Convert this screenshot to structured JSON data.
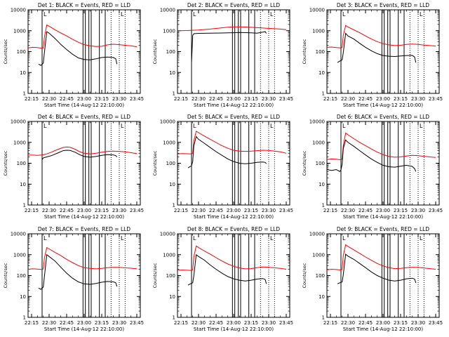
{
  "chart_data": {
    "type": "line",
    "shared": {
      "xlabel": "Start Time (14-Aug-12 22:10:00)",
      "ylabel": "Counts/sec",
      "x_ticks": [
        "22:15",
        "22:30",
        "22:45",
        "23:00",
        "23:15",
        "23:30",
        "23:45"
      ],
      "x_tick_minutes": [
        15,
        30,
        45,
        60,
        75,
        90,
        105
      ],
      "xlim_minutes": [
        12,
        108
      ],
      "y_ticks": [
        "1",
        "10",
        "100",
        "1000",
        "10000"
      ],
      "ylim": [
        1,
        10000
      ],
      "y_scale": "log",
      "series_colors": {
        "events": "#000000",
        "lld": "#ff0000"
      },
      "solid_vlines_minutes": [
        24,
        59,
        61,
        64,
        66,
        73,
        78
      ],
      "dotted_vlines_minutes": [
        83,
        90,
        95
      ],
      "mark_label": "L"
    },
    "panels": [
      {
        "title": "Det 1: BLACK = Events, RED = LLD",
        "series": [
          {
            "key": "events",
            "x": [
              21,
              23,
              25,
              26,
              28,
              30,
              35,
              40,
              45,
              50,
              55,
              60,
              65,
              70,
              75,
              80,
              85,
              87,
              88
            ],
            "y": [
              25,
              22,
              28,
              90,
              900,
              760,
              430,
              220,
              125,
              75,
              50,
              42,
              40,
              45,
              52,
              55,
              52,
              45,
              25
            ]
          },
          {
            "key": "lld",
            "x": [
              12,
              16,
              20,
              24,
              25,
              26,
              28,
              30,
              35,
              40,
              45,
              50,
              55,
              60,
              65,
              70,
              75,
              80,
              85,
              90,
              95,
              100,
              105
            ],
            "y": [
              150,
              160,
              155,
              145,
              150,
              500,
              1900,
              1650,
              1120,
              780,
              560,
              390,
              280,
              215,
              190,
              175,
              180,
              210,
              225,
              215,
              200,
              190,
              170
            ]
          }
        ]
      },
      {
        "title": "Det 2: BLACK = Events, RED = LLD",
        "series": [
          {
            "key": "events",
            "x": [
              24,
              25,
              26,
              30,
              40,
              50,
              55,
              60,
              65,
              70,
              75,
              80,
              85,
              87,
              88
            ],
            "y": [
              30,
              600,
              720,
              750,
              760,
              780,
              790,
              800,
              820,
              810,
              790,
              760,
              850,
              900,
              750
            ]
          },
          {
            "key": "lld",
            "x": [
              12,
              20,
              25,
              30,
              40,
              50,
              55,
              60,
              65,
              70,
              75,
              80,
              85,
              90,
              95,
              100,
              105
            ],
            "y": [
              1000,
              1020,
              1050,
              1080,
              1200,
              1380,
              1480,
              1520,
              1520,
              1500,
              1450,
              1400,
              1350,
              1300,
              1250,
              1200,
              1120
            ]
          }
        ]
      },
      {
        "title": "Det 3: BLACK = Events, RED = LLD",
        "series": [
          {
            "key": "events",
            "x": [
              21,
              23,
              25,
              26,
              28,
              30,
              35,
              40,
              45,
              50,
              55,
              60,
              65,
              70,
              75,
              80,
              85,
              87,
              88
            ],
            "y": [
              30,
              35,
              40,
              90,
              750,
              560,
              400,
              250,
              160,
              110,
              80,
              65,
              60,
              58,
              62,
              65,
              66,
              55,
              30
            ]
          },
          {
            "key": "lld",
            "x": [
              12,
              16,
              20,
              24,
              25,
              26,
              28,
              30,
              35,
              40,
              45,
              50,
              55,
              60,
              65,
              70,
              75,
              80,
              85,
              90,
              95,
              100,
              105
            ],
            "y": [
              160,
              165,
              155,
              150,
              160,
              600,
              1800,
              1500,
              1100,
              800,
              560,
              400,
              300,
              240,
              210,
              195,
              200,
              220,
              230,
              220,
              205,
              195,
              185
            ]
          }
        ]
      },
      {
        "title": "Det 4: BLACK = Events, RED = LLD",
        "series": [
          {
            "key": "events",
            "x": [
              24,
              25,
              28,
              32,
              38,
              42,
              45,
              48,
              52,
              56,
              60,
              65,
              70,
              75,
              80,
              85,
              87,
              88
            ],
            "y": [
              150,
              180,
              200,
              230,
              320,
              400,
              420,
              410,
              340,
              260,
              210,
              195,
              210,
              240,
              260,
              250,
              230,
              200
            ]
          },
          {
            "key": "lld",
            "x": [
              12,
              16,
              20,
              24,
              28,
              32,
              38,
              42,
              45,
              48,
              52,
              56,
              60,
              65,
              70,
              75,
              80,
              85,
              90,
              95,
              100,
              105
            ],
            "y": [
              250,
              245,
              240,
              250,
              280,
              340,
              470,
              570,
              600,
              580,
              470,
              360,
              300,
              280,
              300,
              340,
              370,
              380,
              370,
              350,
              320,
              290
            ]
          }
        ]
      },
      {
        "title": "Det 5: BLACK = Events, RED = LLD",
        "series": [
          {
            "key": "events",
            "x": [
              21,
              23,
              24,
              25,
              26,
              28,
              30,
              35,
              40,
              45,
              50,
              55,
              60,
              65,
              70,
              75,
              80,
              85,
              87,
              88
            ],
            "y": [
              60,
              70,
              75,
              120,
              700,
              1900,
              1400,
              900,
              560,
              360,
              240,
              160,
              120,
              100,
              95,
              100,
              110,
              115,
              110,
              95
            ]
          },
          {
            "key": "lld",
            "x": [
              12,
              16,
              20,
              24,
              25,
              26,
              28,
              30,
              35,
              40,
              45,
              50,
              55,
              60,
              65,
              70,
              75,
              80,
              85,
              90,
              95,
              100,
              105
            ],
            "y": [
              280,
              290,
              285,
              280,
              300,
              1200,
              3400,
              2900,
              2000,
              1400,
              980,
              700,
              520,
              420,
              380,
              370,
              380,
              400,
              420,
              410,
              380,
              350,
              300
            ]
          }
        ]
      },
      {
        "title": "Det 6: BLACK = Events, RED = LLD",
        "series": [
          {
            "key": "events",
            "x": [
              12,
              16,
              20,
              23,
              24,
              25,
              26,
              28,
              30,
              35,
              40,
              45,
              50,
              55,
              60,
              65,
              70,
              75,
              80,
              85,
              87,
              88
            ],
            "y": [
              50,
              45,
              50,
              40,
              48,
              90,
              500,
              1300,
              1000,
              650,
              400,
              250,
              160,
              110,
              80,
              68,
              65,
              72,
              80,
              70,
              55,
              40
            ]
          },
          {
            "key": "lld",
            "x": [
              12,
              16,
              20,
              24,
              25,
              26,
              28,
              30,
              35,
              40,
              45,
              50,
              55,
              60,
              65,
              70,
              75,
              80,
              85,
              90,
              95,
              100,
              105
            ],
            "y": [
              150,
              160,
              155,
              145,
              160,
              700,
              2800,
              2300,
              1500,
              1000,
              700,
              480,
              340,
              260,
              210,
              195,
              200,
              220,
              240,
              230,
              215,
              200,
              190
            ]
          }
        ]
      },
      {
        "title": "Det 7: BLACK = Events, RED = LLD",
        "series": [
          {
            "key": "events",
            "x": [
              21,
              23,
              25,
              26,
              28,
              30,
              35,
              40,
              45,
              50,
              55,
              60,
              65,
              70,
              75,
              80,
              85,
              87,
              88
            ],
            "y": [
              25,
              22,
              28,
              90,
              1000,
              820,
              500,
              250,
              130,
              75,
              50,
              40,
              38,
              42,
              48,
              52,
              50,
              45,
              30
            ]
          },
          {
            "key": "lld",
            "x": [
              12,
              16,
              20,
              24,
              25,
              26,
              28,
              30,
              35,
              40,
              45,
              50,
              55,
              60,
              65,
              70,
              75,
              80,
              85,
              90,
              95,
              100,
              105
            ],
            "y": [
              200,
              210,
              205,
              195,
              210,
              700,
              2200,
              1900,
              1300,
              900,
              600,
              420,
              300,
              240,
              220,
              210,
              220,
              240,
              250,
              245,
              235,
              225,
              210
            ]
          }
        ]
      },
      {
        "title": "Det 8: BLACK = Events, RED = LLD",
        "series": [
          {
            "key": "events",
            "x": [
              21,
              23,
              25,
              26,
              28,
              30,
              35,
              40,
              45,
              50,
              55,
              60,
              65,
              70,
              75,
              80,
              85,
              87,
              88
            ],
            "y": [
              35,
              40,
              45,
              100,
              1000,
              820,
              550,
              320,
              200,
              130,
              90,
              70,
              60,
              55,
              60,
              68,
              72,
              65,
              40
            ]
          },
          {
            "key": "lld",
            "x": [
              12,
              16,
              20,
              24,
              25,
              26,
              28,
              30,
              35,
              40,
              45,
              50,
              55,
              60,
              65,
              70,
              75,
              80,
              85,
              90,
              95,
              100,
              105
            ],
            "y": [
              180,
              185,
              180,
              175,
              190,
              800,
              2600,
              2200,
              1500,
              1050,
              720,
              500,
              360,
              280,
              230,
              210,
              215,
              240,
              260,
              250,
              235,
              220,
              200
            ]
          }
        ]
      },
      {
        "title": "Det 9: BLACK = Events, RED = LLD",
        "series": [
          {
            "key": "events",
            "x": [
              21,
              23,
              25,
              26,
              28,
              30,
              35,
              40,
              45,
              50,
              55,
              60,
              65,
              70,
              75,
              80,
              85,
              87,
              88
            ],
            "y": [
              40,
              45,
              50,
              110,
              1050,
              850,
              600,
              380,
              240,
              150,
              100,
              75,
              60,
              55,
              60,
              70,
              75,
              68,
              45
            ]
          },
          {
            "key": "lld",
            "x": [
              12,
              16,
              20,
              24,
              25,
              26,
              28,
              30,
              35,
              40,
              45,
              50,
              55,
              60,
              65,
              70,
              75,
              80,
              85,
              90,
              95,
              100,
              105
            ],
            "y": [
              190,
              200,
              195,
              185,
              200,
              900,
              3000,
              2500,
              1700,
              1150,
              780,
              540,
              380,
              290,
              240,
              215,
              220,
              240,
              250,
              245,
              230,
              215,
              200
            ]
          }
        ]
      }
    ]
  }
}
